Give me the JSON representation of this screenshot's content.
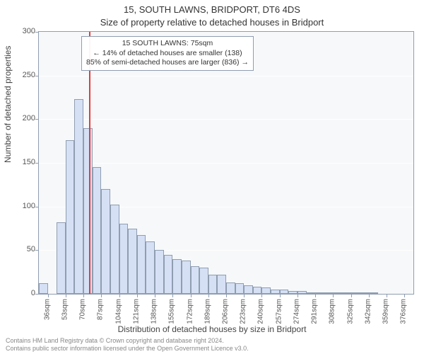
{
  "titles": {
    "main": "15, SOUTH LAWNS, BRIDPORT, DT6 4DS",
    "sub": "Size of property relative to detached houses in Bridport"
  },
  "axes": {
    "ylabel": "Number of detached properties",
    "xlabel": "Distribution of detached houses by size in Bridport"
  },
  "chart": {
    "type": "histogram",
    "background_color": "#f6f8fa",
    "border_color": "#8f9db0",
    "grid_color": "#ffffff",
    "bar_fill": "#d6e0f5",
    "bar_border": "#8f9db0",
    "marker_color": "#e23c3c",
    "ylim": [
      0,
      300
    ],
    "yticks": [
      0,
      50,
      100,
      150,
      200,
      250,
      300
    ],
    "xticks_label_suffix": "sqm",
    "xtick_step_label": 17,
    "xtick_start": 36,
    "xtick_count": 21,
    "bar_count": 42,
    "values": [
      12,
      0,
      82,
      176,
      223,
      190,
      145,
      120,
      102,
      80,
      75,
      67,
      60,
      50,
      45,
      40,
      38,
      32,
      30,
      22,
      22,
      13,
      12,
      10,
      8,
      7,
      5,
      5,
      3,
      3,
      2,
      2,
      2,
      1,
      1,
      1,
      1,
      1,
      0,
      0,
      0,
      0
    ],
    "marker_sqm": 75
  },
  "annotation": {
    "line1": "15 SOUTH LAWNS: 75sqm",
    "line2": "← 14% of detached houses are smaller (138)",
    "line3": "85% of semi-detached houses are larger (836) →"
  },
  "footer": {
    "line1": "Contains HM Land Registry data © Crown copyright and database right 2024.",
    "line2": "Contains public sector information licensed under the Open Government Licence v3.0."
  }
}
